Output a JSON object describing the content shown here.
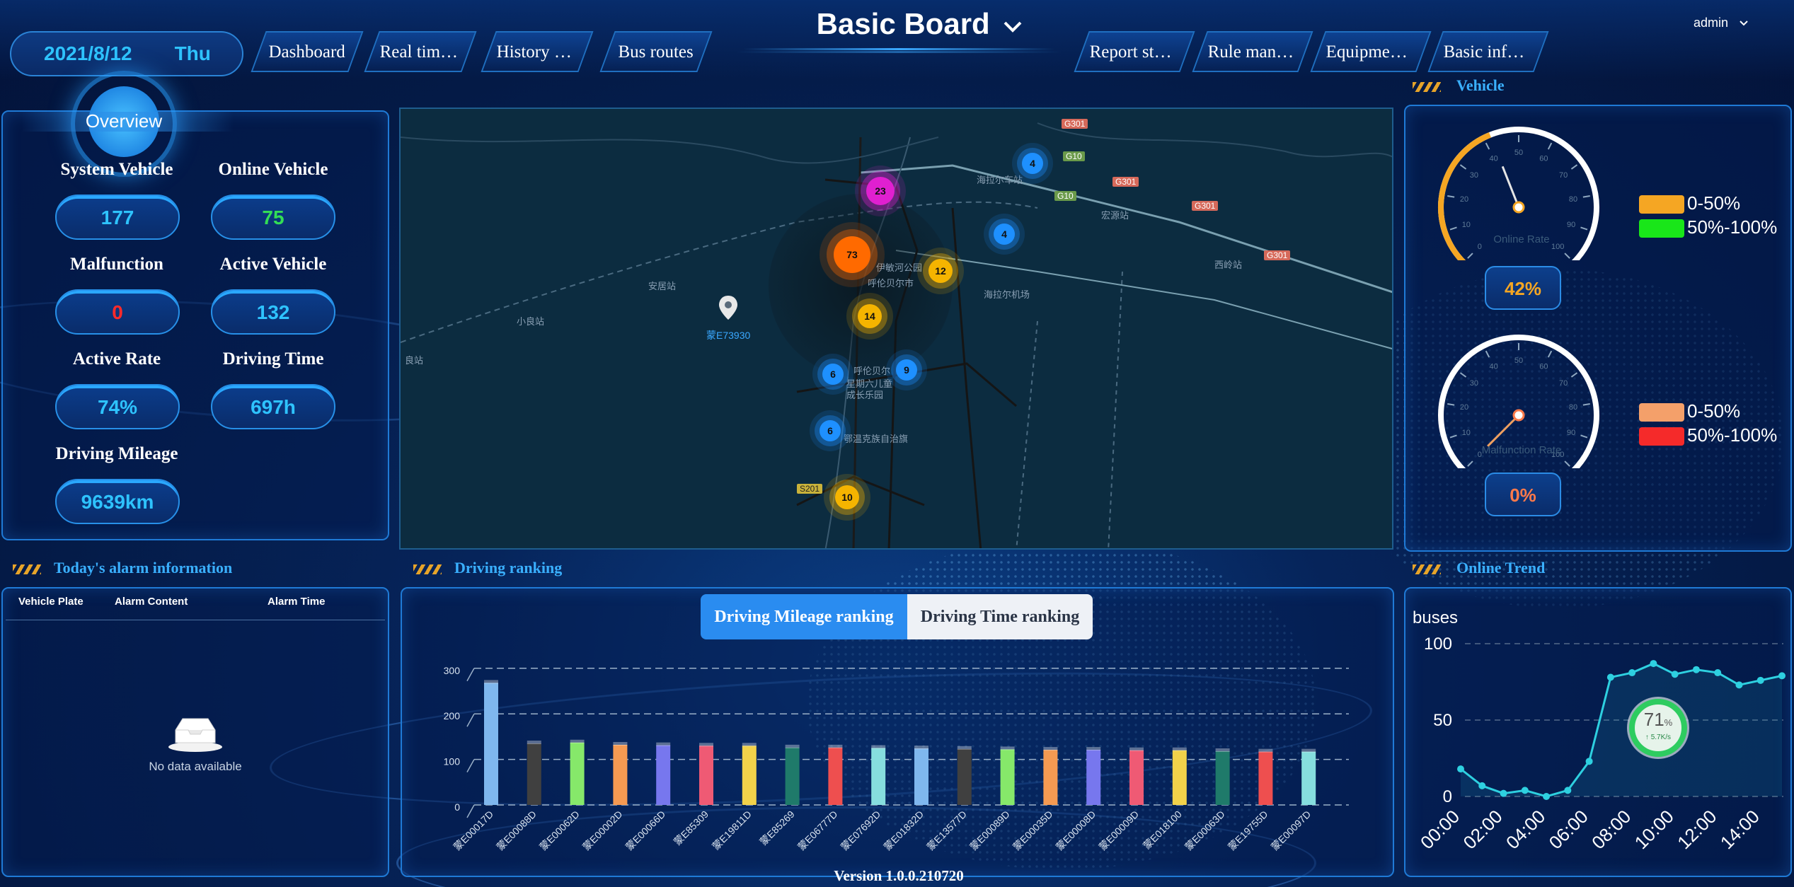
{
  "header": {
    "date": "2021/8/12",
    "weekday": "Thu",
    "title": "Basic Board",
    "user": "admin",
    "nav_left": [
      "Dashboard",
      "Real time ...",
      "History pla...",
      "Bus routes"
    ],
    "nav_right": [
      "Report stat...",
      "Rule mana...",
      "Equipment...",
      "Basic infor..."
    ]
  },
  "overview": {
    "title": "Overview",
    "stats": [
      {
        "label": "System Vehicle",
        "value": "177",
        "color": "#2ec3ff"
      },
      {
        "label": "Online Vehicle",
        "value": "75",
        "color": "#33dd55"
      },
      {
        "label": "Malfunction",
        "value": "0",
        "color": "#ff2a2a"
      },
      {
        "label": "Active Vehicle",
        "value": "132",
        "color": "#2ec3ff"
      },
      {
        "label": "Active Rate",
        "value": "74%",
        "color": "#2ec3ff"
      },
      {
        "label": "Driving Time",
        "value": "697h",
        "color": "#2ec3ff"
      },
      {
        "label": "Driving Mileage",
        "value": "9639km",
        "color": "#2ec3ff"
      }
    ]
  },
  "map": {
    "place_labels": [
      "海拉尔车站",
      "伊敏河公园",
      "呼伦贝尔市",
      "宏源站",
      "西岭站",
      "海拉尔机场",
      "安居站",
      "小良站",
      "良站",
      "呼伦贝尔",
      "星期六儿童",
      "成长乐园",
      "鄂温克族自治旗"
    ],
    "road_tags": [
      "G301",
      "G10",
      "G301",
      "G301",
      "G301",
      "G10",
      "S201"
    ],
    "marker_label": "蒙E73930",
    "clusters": [
      {
        "count": "23",
        "color": "#e020d0"
      },
      {
        "count": "4",
        "color": "#1e90ff"
      },
      {
        "count": "4",
        "color": "#1e90ff"
      },
      {
        "count": "73",
        "color": "#ff6a00"
      },
      {
        "count": "12",
        "color": "#f5b400"
      },
      {
        "count": "14",
        "color": "#f5b400"
      },
      {
        "count": "6",
        "color": "#1e90ff"
      },
      {
        "count": "9",
        "color": "#1e90ff"
      },
      {
        "count": "6",
        "color": "#1e90ff"
      },
      {
        "count": "10",
        "color": "#f5b400"
      }
    ]
  },
  "alarm": {
    "title": "Today's alarm information",
    "columns": [
      "Vehicle Plate",
      "Alarm Content",
      "Alarm Time"
    ],
    "empty_text": "No data available"
  },
  "ranking": {
    "title": "Driving ranking",
    "tabs": [
      "Driving Mileage ranking",
      "Driving Time ranking"
    ],
    "active_tab": "Driving Mileage ranking"
  },
  "vehicle": {
    "title": "Vehicle",
    "gauges": [
      {
        "name": "Online Rate",
        "value": "42%",
        "value_num": 42,
        "value_color": "#f5a623",
        "pointer_color": "#e5e5e5",
        "legend": [
          {
            "label": "0-50%",
            "color": "#f5a623"
          },
          {
            "label": "50%-100%",
            "color": "#19e619"
          }
        ]
      },
      {
        "name": "Malfunction Rate",
        "value": "0%",
        "value_num": 0,
        "value_color": "#ff7a4a",
        "pointer_color": "#f0a060",
        "legend": [
          {
            "label": "0-50%",
            "color": "#f4a06a"
          },
          {
            "label": "50%-100%",
            "color": "#f52a2a"
          }
        ]
      }
    ],
    "ticks": [
      "0",
      "10",
      "20",
      "30",
      "40",
      "50",
      "60",
      "70",
      "80",
      "90",
      "100"
    ]
  },
  "trend": {
    "title": "Online Trend",
    "unit": "buses",
    "badge_value": "71",
    "badge_unit": "%",
    "badge_sub": "↑ 5.7K/s"
  },
  "footer": {
    "version": "Version 1.0.0.210720"
  },
  "chart_data": [
    {
      "type": "bar",
      "categories": [
        "蒙E00017D",
        "蒙E00088D",
        "蒙E00062D",
        "蒙E00002D",
        "蒙E00066D",
        "蒙E85309",
        "蒙E19811D",
        "蒙E85269",
        "蒙E06777D",
        "蒙E07692D",
        "蒙E01832D",
        "蒙E13577D",
        "蒙E00089D",
        "蒙E00035D",
        "蒙E00008D",
        "蒙E00009D",
        "蒙E018100",
        "蒙E00063D",
        "蒙E19755D",
        "蒙E00097D"
      ],
      "values": [
        268,
        135,
        137,
        132,
        131,
        130,
        130,
        126,
        126,
        125,
        124,
        123,
        122,
        121,
        121,
        120,
        120,
        118,
        117,
        117
      ],
      "colors": [
        "#7fb7ee",
        "#404040",
        "#86e86a",
        "#f59a52",
        "#7777ee",
        "#ef5a74",
        "#f2d24a",
        "#1f7a6a",
        "#ee4f4f",
        "#86dede",
        "#7fb7ee",
        "#404040",
        "#86e86a",
        "#f59a52",
        "#7777ee",
        "#ef5a74",
        "#f2d24a",
        "#1f7a6a",
        "#ee4f4f",
        "#86dede"
      ],
      "yticks": [
        "0",
        "100",
        "200",
        "300"
      ],
      "ylim": [
        0,
        300
      ]
    },
    {
      "type": "line",
      "x": [
        "00:00",
        "01:00",
        "02:00",
        "03:00",
        "04:00",
        "05:00",
        "06:00",
        "07:00",
        "08:00",
        "09:00",
        "10:00",
        "11:00",
        "12:00",
        "13:00",
        "14:00",
        "15:00"
      ],
      "xticks": [
        "00:00",
        "02:00",
        "04:00",
        "06:00",
        "08:00",
        "10:00",
        "12:00",
        "14:00"
      ],
      "yticks": [
        "0",
        "50",
        "100"
      ],
      "values": [
        18,
        7,
        2,
        4,
        0,
        4,
        23,
        78,
        81,
        87,
        80,
        83,
        81,
        73,
        76,
        79
      ],
      "ylim": [
        0,
        100
      ],
      "ylabel": "buses",
      "grid": true
    }
  ]
}
